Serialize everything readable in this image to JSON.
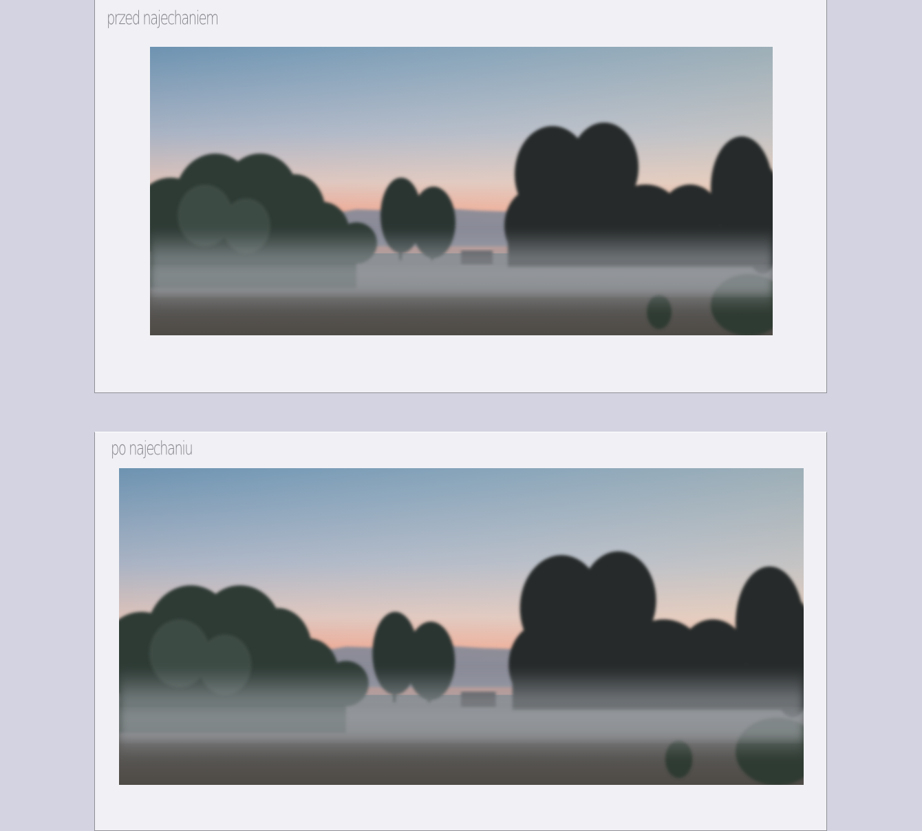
{
  "panels": [
    {
      "caption": "przed najechaniem"
    },
    {
      "caption": "po najechaniu"
    }
  ],
  "colors": {
    "page_background": "#d3d3e1",
    "panel_background": "#f1f1f5",
    "caption_text": "#7e7e86"
  }
}
